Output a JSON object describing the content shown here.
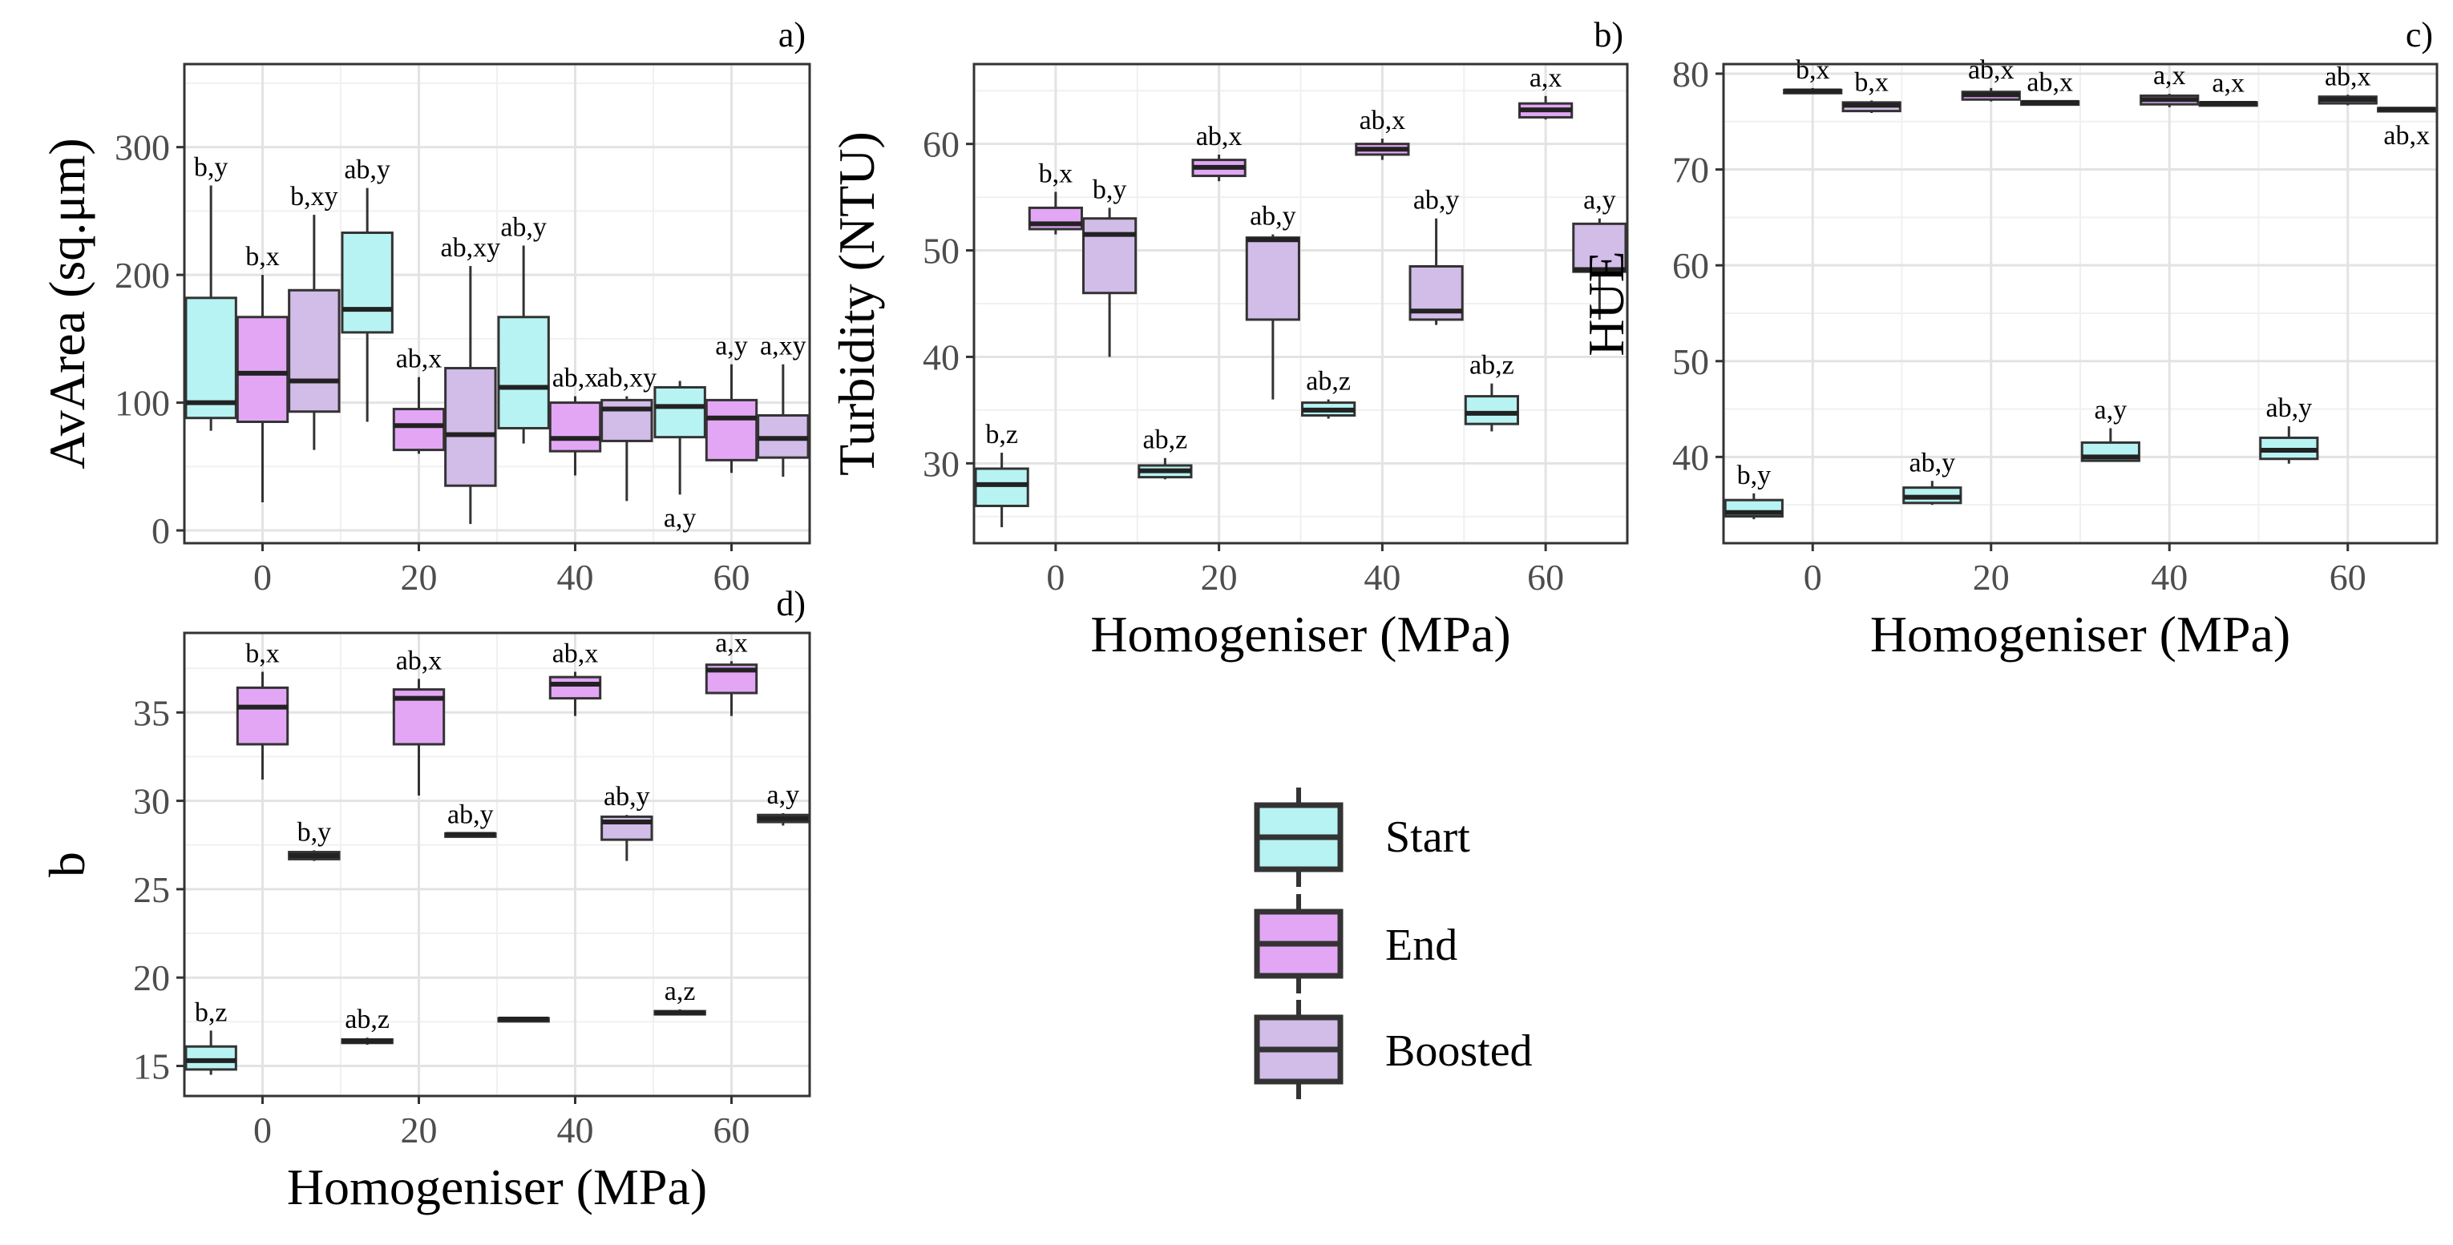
{
  "colors": {
    "Start": "#b7f3f3",
    "End": "#e3a6f5",
    "Boosted": "#d2bce8"
  },
  "legend": {
    "items": [
      "Start",
      "End",
      "Boosted"
    ]
  },
  "chart_data": [
    {
      "id": "a",
      "tag": "a)",
      "type": "boxplot",
      "xlabel": "",
      "ylabel": "AvArea (sq.μm)",
      "categories": [
        "0",
        "20",
        "40",
        "60"
      ],
      "yticks": [
        0,
        100,
        200,
        300
      ],
      "ylim": [
        -10,
        365
      ],
      "groups": [
        {
          "cat": "0",
          "series": "Start",
          "min": 78,
          "q1": 88,
          "median": 100,
          "q3": 182,
          "max": 270,
          "label": "b,y"
        },
        {
          "cat": "0",
          "series": "End",
          "min": 22,
          "q1": 85,
          "median": 123,
          "q3": 167,
          "max": 200,
          "label": "b,x"
        },
        {
          "cat": "0",
          "series": "Boosted",
          "min": 63,
          "q1": 93,
          "median": 117,
          "q3": 188,
          "max": 247,
          "label": "b,xy"
        },
        {
          "cat": "20",
          "series": "Start",
          "min": 85,
          "q1": 155,
          "median": 173,
          "q3": 233,
          "max": 268,
          "label": "ab,y"
        },
        {
          "cat": "20",
          "series": "End",
          "min": 60,
          "q1": 63,
          "median": 82,
          "q3": 95,
          "max": 120,
          "label": "ab,x"
        },
        {
          "cat": "20",
          "series": "Boosted",
          "min": 5,
          "q1": 35,
          "median": 75,
          "q3": 127,
          "max": 207,
          "label": "ab,xy"
        },
        {
          "cat": "40",
          "series": "Start",
          "min": 68,
          "q1": 80,
          "median": 112,
          "q3": 167,
          "max": 223,
          "label": "ab,y"
        },
        {
          "cat": "40",
          "series": "End",
          "min": 43,
          "q1": 62,
          "median": 72,
          "q3": 100,
          "max": 105,
          "label": "ab,x"
        },
        {
          "cat": "40",
          "series": "Boosted",
          "min": 23,
          "q1": 70,
          "median": 95,
          "q3": 102,
          "max": 105,
          "label": "ab,xy"
        },
        {
          "cat": "60",
          "series": "Start",
          "min": 28,
          "q1": 73,
          "median": 97,
          "q3": 112,
          "max": 117,
          "label": "a,y",
          "label_below": true
        },
        {
          "cat": "60",
          "series": "End",
          "min": 45,
          "q1": 55,
          "median": 88,
          "q3": 102,
          "max": 130,
          "label": "a,y"
        },
        {
          "cat": "60",
          "series": "Boosted",
          "min": 42,
          "q1": 57,
          "median": 72,
          "q3": 90,
          "max": 130,
          "label": "a,xy"
        }
      ]
    },
    {
      "id": "b",
      "tag": "b)",
      "type": "boxplot",
      "xlabel": "Homogeniser (MPa)",
      "ylabel": "Turbidity (NTU)",
      "categories": [
        "0",
        "20",
        "40",
        "60"
      ],
      "yticks": [
        30,
        40,
        50,
        60
      ],
      "ylim": [
        22.5,
        67.5
      ],
      "groups": [
        {
          "cat": "0",
          "series": "Start",
          "min": 24,
          "q1": 26,
          "median": 28,
          "q3": 29.5,
          "max": 31,
          "label": "b,z"
        },
        {
          "cat": "0",
          "series": "End",
          "min": 51.5,
          "q1": 52,
          "median": 52.5,
          "q3": 54,
          "max": 55.5,
          "label": "b,x"
        },
        {
          "cat": "0",
          "series": "Boosted",
          "min": 40,
          "q1": 46,
          "median": 51.5,
          "q3": 53,
          "max": 54,
          "label": "b,y"
        },
        {
          "cat": "20",
          "series": "Start",
          "min": 28.5,
          "q1": 28.7,
          "median": 29.3,
          "q3": 29.8,
          "max": 30.5,
          "label": "ab,z"
        },
        {
          "cat": "20",
          "series": "End",
          "min": 56.5,
          "q1": 57,
          "median": 57.8,
          "q3": 58.5,
          "max": 59,
          "label": "ab,x"
        },
        {
          "cat": "20",
          "series": "Boosted",
          "min": 36,
          "q1": 43.5,
          "median": 51,
          "q3": 51.2,
          "max": 51.5,
          "label": "ab,y"
        },
        {
          "cat": "40",
          "series": "Start",
          "min": 34.2,
          "q1": 34.5,
          "median": 35,
          "q3": 35.7,
          "max": 36,
          "label": "ab,z"
        },
        {
          "cat": "40",
          "series": "End",
          "min": 58.5,
          "q1": 59,
          "median": 59.5,
          "q3": 60,
          "max": 60.5,
          "label": "ab,x"
        },
        {
          "cat": "40",
          "series": "Boosted",
          "min": 43,
          "q1": 43.5,
          "median": 44.3,
          "q3": 48.5,
          "max": 53,
          "label": "ab,y"
        },
        {
          "cat": "60",
          "series": "Start",
          "min": 33,
          "q1": 33.7,
          "median": 34.7,
          "q3": 36.3,
          "max": 37.5,
          "label": "ab,z"
        },
        {
          "cat": "60",
          "series": "End",
          "min": 62.3,
          "q1": 62.5,
          "median": 63.2,
          "q3": 63.8,
          "max": 64.5,
          "label": "a,x"
        },
        {
          "cat": "60",
          "series": "Boosted",
          "min": 43.5,
          "q1": 48,
          "median": 48.2,
          "q3": 52.5,
          "max": 53,
          "label": "a,y"
        }
      ]
    },
    {
      "id": "c",
      "tag": "c)",
      "type": "boxplot",
      "xlabel": "Homogeniser (MPa)",
      "ylabel": "HUE",
      "categories": [
        "0",
        "20",
        "40",
        "60"
      ],
      "yticks": [
        40,
        50,
        60,
        70,
        80
      ],
      "ylim": [
        31,
        81
      ],
      "groups": [
        {
          "cat": "0",
          "series": "Start",
          "min": 33.5,
          "q1": 33.8,
          "median": 34.2,
          "q3": 35.5,
          "max": 36.2,
          "label": "b,y"
        },
        {
          "cat": "0",
          "series": "End",
          "min": 77.9,
          "q1": 78,
          "median": 78.2,
          "q3": 78.3,
          "max": 78.5,
          "label": "b,x"
        },
        {
          "cat": "0",
          "series": "Boosted",
          "min": 75.9,
          "q1": 76.1,
          "median": 76.7,
          "q3": 77,
          "max": 77.2,
          "label": "b,x"
        },
        {
          "cat": "20",
          "series": "Start",
          "min": 35,
          "q1": 35.2,
          "median": 35.8,
          "q3": 36.8,
          "max": 37.5,
          "label": "ab,y"
        },
        {
          "cat": "20",
          "series": "End",
          "min": 77.1,
          "q1": 77.3,
          "median": 77.8,
          "q3": 78.1,
          "max": 78.5,
          "label": "ab,x"
        },
        {
          "cat": "20",
          "series": "Boosted",
          "min": 76.9,
          "q1": 77,
          "median": 77,
          "q3": 77.1,
          "max": 77.2,
          "label": "ab,x"
        },
        {
          "cat": "40",
          "series": "Start",
          "min": 39.5,
          "q1": 39.6,
          "median": 40,
          "q3": 41.5,
          "max": 43,
          "label": "a,y"
        },
        {
          "cat": "40",
          "series": "End",
          "min": 76.5,
          "q1": 76.8,
          "median": 77.3,
          "q3": 77.7,
          "max": 77.9,
          "label": "a,x"
        },
        {
          "cat": "40",
          "series": "Boosted",
          "min": 76.7,
          "q1": 76.8,
          "median": 76.9,
          "q3": 77,
          "max": 77.1,
          "label": "a,x"
        },
        {
          "cat": "60",
          "series": "Start",
          "min": 39.3,
          "q1": 39.8,
          "median": 40.7,
          "q3": 42,
          "max": 43.2,
          "label": "ab,y"
        },
        {
          "cat": "60",
          "series": "End",
          "min": 76.7,
          "q1": 76.9,
          "median": 77.3,
          "q3": 77.6,
          "max": 77.8,
          "label": "ab,x"
        },
        {
          "cat": "60",
          "series": "Boosted",
          "min": 76,
          "q1": 76.1,
          "median": 76.3,
          "q3": 76.4,
          "max": 76.5,
          "label": "ab,x",
          "label_below": true
        }
      ]
    },
    {
      "id": "d",
      "tag": "d)",
      "type": "boxplot",
      "xlabel": "Homogeniser (MPa)",
      "ylabel": "b",
      "categories": [
        "0",
        "20",
        "40",
        "60"
      ],
      "yticks": [
        15,
        20,
        25,
        30,
        35
      ],
      "ylim": [
        13.3,
        39.5
      ],
      "groups": [
        {
          "cat": "0",
          "series": "Start",
          "min": 14.5,
          "q1": 14.8,
          "median": 15.3,
          "q3": 16.1,
          "max": 17,
          "label": "b,z"
        },
        {
          "cat": "0",
          "series": "End",
          "min": 31.2,
          "q1": 33.2,
          "median": 35.3,
          "q3": 36.4,
          "max": 37.3,
          "label": "b,x"
        },
        {
          "cat": "0",
          "series": "Boosted",
          "min": 26.6,
          "q1": 26.7,
          "median": 26.9,
          "q3": 27.1,
          "max": 27.2,
          "label": "b,y"
        },
        {
          "cat": "20",
          "series": "Start",
          "min": 16.2,
          "q1": 16.3,
          "median": 16.4,
          "q3": 16.5,
          "max": 16.6,
          "label": "ab,z"
        },
        {
          "cat": "20",
          "series": "End",
          "min": 30.3,
          "q1": 33.2,
          "median": 35.8,
          "q3": 36.3,
          "max": 36.9,
          "label": "ab,x"
        },
        {
          "cat": "20",
          "series": "Boosted",
          "min": 28,
          "q1": 28.05,
          "median": 28.1,
          "q3": 28.15,
          "max": 28.2,
          "label": "ab,y"
        },
        {
          "cat": "40",
          "series": "Start",
          "min": 17.55,
          "q1": 17.6,
          "median": 17.65,
          "q3": 17.7,
          "max": 17.75,
          "label": ""
        },
        {
          "cat": "40",
          "series": "End",
          "min": 34.8,
          "q1": 35.8,
          "median": 36.6,
          "q3": 37,
          "max": 37.3,
          "label": "ab,x"
        },
        {
          "cat": "40",
          "series": "Boosted",
          "min": 26.6,
          "q1": 27.8,
          "median": 28.8,
          "q3": 29.1,
          "max": 29.2,
          "label": "ab,y"
        },
        {
          "cat": "60",
          "series": "Start",
          "min": 17.9,
          "q1": 17.95,
          "median": 18,
          "q3": 18.1,
          "max": 18.2,
          "label": "a,z"
        },
        {
          "cat": "60",
          "series": "End",
          "min": 34.8,
          "q1": 36.1,
          "median": 37.4,
          "q3": 37.7,
          "max": 37.9,
          "label": "a,x"
        },
        {
          "cat": "60",
          "series": "Boosted",
          "min": 28.6,
          "q1": 28.8,
          "median": 29,
          "q3": 29.2,
          "max": 29.3,
          "label": "a,y"
        }
      ]
    }
  ]
}
